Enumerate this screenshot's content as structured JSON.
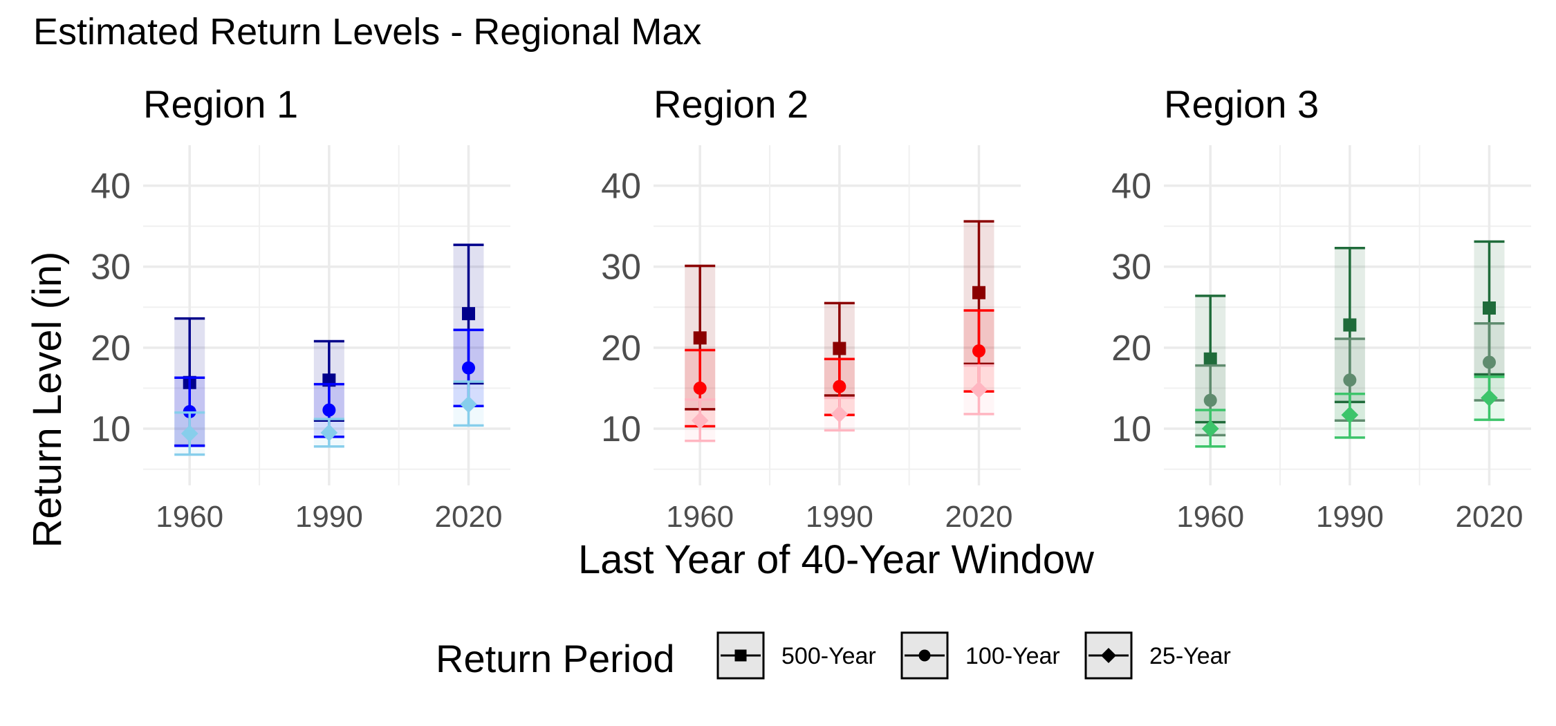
{
  "chart_data": {
    "type": "scatter",
    "title": "Estimated Return Levels - Regional Max",
    "xlabel": "Last Year of 40-Year Window",
    "ylabel": "Return Level (in)",
    "x": [
      1960,
      1990,
      2020
    ],
    "xlim": [
      1950,
      2029
    ],
    "ylim": [
      3,
      45
    ],
    "yticks": [
      10,
      20,
      30,
      40
    ],
    "grid": true,
    "legend": {
      "title": "Return Period",
      "placement": "bottom",
      "entries": [
        {
          "label": "500-Year",
          "shape": "square"
        },
        {
          "label": "100-Year",
          "shape": "circle"
        },
        {
          "label": "25-Year",
          "shape": "diamond"
        }
      ]
    },
    "facets": [
      {
        "name": "Region 1",
        "colors": {
          "500-Year": "#00008b",
          "100-Year": "#0000ff",
          "25-Year": "#87ceeb"
        },
        "series": [
          {
            "period": "500-Year",
            "points": [
              {
                "x": 1960,
                "y": 15.7,
                "lo": 7.9,
                "hi": 23.6
              },
              {
                "x": 1990,
                "y": 16.0,
                "lo": 11.0,
                "hi": 20.8
              },
              {
                "x": 2020,
                "y": 24.2,
                "lo": 15.6,
                "hi": 32.7
              }
            ]
          },
          {
            "period": "100-Year",
            "points": [
              {
                "x": 1960,
                "y": 12.1,
                "lo": 7.9,
                "hi": 16.3
              },
              {
                "x": 1990,
                "y": 12.3,
                "lo": 9.0,
                "hi": 15.5
              },
              {
                "x": 2020,
                "y": 17.5,
                "lo": 12.8,
                "hi": 22.2
              }
            ]
          },
          {
            "period": "25-Year",
            "points": [
              {
                "x": 1960,
                "y": 9.4,
                "lo": 6.8,
                "hi": 12.0
              },
              {
                "x": 1990,
                "y": 9.5,
                "lo": 7.8,
                "hi": 11.2
              },
              {
                "x": 2020,
                "y": 13.0,
                "lo": 10.4,
                "hi": 15.8
              }
            ]
          }
        ]
      },
      {
        "name": "Region 2",
        "colors": {
          "500-Year": "#8b0000",
          "100-Year": "#ff0000",
          "25-Year": "#ffb6c1"
        },
        "series": [
          {
            "period": "500-Year",
            "points": [
              {
                "x": 1960,
                "y": 21.2,
                "lo": 12.4,
                "hi": 30.1
              },
              {
                "x": 1990,
                "y": 19.9,
                "lo": 14.1,
                "hi": 25.5
              },
              {
                "x": 2020,
                "y": 26.8,
                "lo": 18.0,
                "hi": 35.6
              }
            ]
          },
          {
            "period": "100-Year",
            "points": [
              {
                "x": 1960,
                "y": 15.0,
                "lo": 10.3,
                "hi": 19.7
              },
              {
                "x": 1990,
                "y": 15.2,
                "lo": 11.7,
                "hi": 18.6
              },
              {
                "x": 2020,
                "y": 19.6,
                "lo": 14.6,
                "hi": 24.6
              }
            ]
          },
          {
            "period": "25-Year",
            "points": [
              {
                "x": 1960,
                "y": 11.0,
                "lo": 8.5,
                "hi": 13.6
              },
              {
                "x": 1990,
                "y": 11.8,
                "lo": 9.8,
                "hi": 13.8
              },
              {
                "x": 2020,
                "y": 14.8,
                "lo": 11.8,
                "hi": 17.8
              }
            ]
          }
        ]
      },
      {
        "name": "Region 3",
        "colors": {
          "500-Year": "#1f6b3a",
          "100-Year": "#5f8b6e",
          "25-Year": "#3cc46a"
        },
        "series": [
          {
            "period": "500-Year",
            "points": [
              {
                "x": 1960,
                "y": 18.6,
                "lo": 10.8,
                "hi": 26.4
              },
              {
                "x": 1990,
                "y": 22.8,
                "lo": 13.3,
                "hi": 32.3
              },
              {
                "x": 2020,
                "y": 24.9,
                "lo": 16.7,
                "hi": 33.1
              }
            ]
          },
          {
            "period": "100-Year",
            "points": [
              {
                "x": 1960,
                "y": 13.5,
                "lo": 9.2,
                "hi": 17.8
              },
              {
                "x": 1990,
                "y": 16.0,
                "lo": 11.0,
                "hi": 21.1
              },
              {
                "x": 2020,
                "y": 18.2,
                "lo": 13.5,
                "hi": 23.0
              }
            ]
          },
          {
            "period": "25-Year",
            "points": [
              {
                "x": 1960,
                "y": 10.0,
                "lo": 7.8,
                "hi": 12.3
              },
              {
                "x": 1990,
                "y": 11.7,
                "lo": 8.9,
                "hi": 14.3
              },
              {
                "x": 2020,
                "y": 13.8,
                "lo": 11.1,
                "hi": 16.4
              }
            ]
          }
        ]
      }
    ]
  }
}
